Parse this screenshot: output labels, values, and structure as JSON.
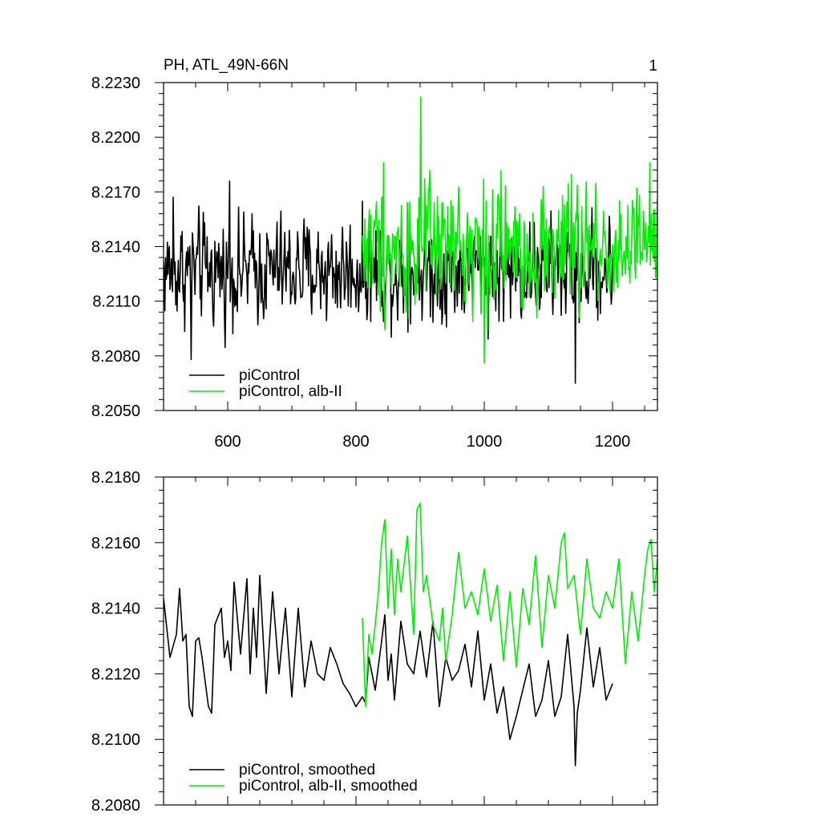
{
  "figure": {
    "title_left": "PH, ATL_49N-66N",
    "title_right": "1"
  },
  "chart_data": [
    {
      "type": "line",
      "title": "PH, ATL_49N-66N",
      "xlabel": "",
      "ylabel": "",
      "xlim": [
        500,
        1270
      ],
      "ylim": [
        8.205,
        8.223
      ],
      "x_ticks": [
        600,
        800,
        1000,
        1200
      ],
      "x_tick_labels": [
        "600",
        "800",
        "1000",
        "1200"
      ],
      "y_ticks": [
        8.205,
        8.208,
        8.211,
        8.214,
        8.217,
        8.22,
        8.223
      ],
      "y_tick_labels": [
        "8.2050",
        "8.2080",
        "8.2110",
        "8.2140",
        "8.2170",
        "8.2200",
        "8.2230"
      ],
      "legend_position": "bottom-left",
      "grid": false,
      "series": [
        {
          "name": "piControl",
          "color": "#000000",
          "x_range": [
            500,
            1200
          ],
          "x_step": 1,
          "mean": 8.2127,
          "noise": 0.00135,
          "extremes": [
            [
              515,
              8.2167
            ],
            [
              543,
              8.2078
            ],
            [
              603,
              8.2176
            ],
            [
              1142,
              8.2065
            ]
          ]
        },
        {
          "name": "piControl, alb-II",
          "color": "#00ee00",
          "x_range": [
            810,
            1270
          ],
          "x_step": 1,
          "mean": 8.2139,
          "noise": 0.00165,
          "extremes": [
            [
              901,
              8.2222
            ],
            [
              843,
              8.2186
            ],
            [
              1000,
              8.2076
            ],
            [
              1258,
              8.2186
            ]
          ]
        }
      ]
    },
    {
      "type": "line",
      "title": "",
      "xlabel": "",
      "ylabel": "",
      "xlim": [
        500,
        1270
      ],
      "ylim": [
        8.208,
        8.218
      ],
      "x_ticks": [
        600,
        800,
        1000,
        1200
      ],
      "y_ticks": [
        8.208,
        8.21,
        8.212,
        8.214,
        8.216,
        8.218
      ],
      "y_tick_labels": [
        "8.2080",
        "8.2100",
        "8.2120",
        "8.2140",
        "8.2160",
        "8.2180"
      ],
      "legend_position": "bottom-left",
      "grid": false,
      "series": [
        {
          "name": "piControl, smoothed",
          "color": "#000000",
          "x": [
            500,
            510,
            520,
            525,
            530,
            535,
            540,
            545,
            550,
            555,
            560,
            570,
            575,
            580,
            590,
            595,
            600,
            605,
            610,
            620,
            630,
            635,
            640,
            645,
            650,
            660,
            670,
            680,
            690,
            700,
            710,
            720,
            730,
            740,
            750,
            760,
            770,
            780,
            790,
            800,
            810,
            815,
            820,
            830,
            840,
            845,
            850,
            855,
            860,
            870,
            880,
            890,
            900,
            910,
            920,
            925,
            930,
            940,
            950,
            960,
            970,
            980,
            990,
            1000,
            1010,
            1020,
            1030,
            1040,
            1050,
            1060,
            1070,
            1080,
            1090,
            1100,
            1110,
            1120,
            1130,
            1140,
            1142,
            1145,
            1150,
            1160,
            1170,
            1180,
            1190,
            1200
          ],
          "y": [
            8.2143,
            8.2125,
            8.2132,
            8.2146,
            8.213,
            8.2132,
            8.211,
            8.2107,
            8.213,
            8.2131,
            8.2125,
            8.211,
            8.2108,
            8.2135,
            8.214,
            8.2125,
            8.213,
            8.2121,
            8.2148,
            8.2126,
            8.2149,
            8.212,
            8.214,
            8.2125,
            8.215,
            8.2114,
            8.2145,
            8.212,
            8.214,
            8.2113,
            8.214,
            8.2116,
            8.213,
            8.212,
            8.2118,
            8.2128,
            8.2123,
            8.2117,
            8.2114,
            8.211,
            8.2113,
            8.2111,
            8.2125,
            8.2115,
            8.213,
            8.2138,
            8.2118,
            8.2126,
            8.2112,
            8.2136,
            8.2123,
            8.212,
            8.2133,
            8.2119,
            8.2136,
            8.2123,
            8.211,
            8.2125,
            8.2118,
            8.2121,
            8.2129,
            8.2116,
            8.2133,
            8.2112,
            8.2123,
            8.2108,
            8.2116,
            8.21,
            8.2107,
            8.2115,
            8.2123,
            8.2107,
            8.2112,
            8.2124,
            8.2107,
            8.2113,
            8.2132,
            8.211,
            8.2092,
            8.2108,
            8.2115,
            8.2134,
            8.2116,
            8.2128,
            8.2112,
            8.2117
          ]
        },
        {
          "name": "piControl, alb-II, smoothed",
          "color": "#00ee00",
          "x": [
            810,
            815,
            820,
            825,
            830,
            835,
            840,
            845,
            850,
            855,
            860,
            865,
            870,
            880,
            890,
            895,
            900,
            905,
            910,
            920,
            930,
            935,
            940,
            950,
            960,
            970,
            980,
            990,
            1000,
            1010,
            1020,
            1030,
            1040,
            1050,
            1060,
            1070,
            1080,
            1090,
            1100,
            1110,
            1120,
            1125,
            1130,
            1140,
            1150,
            1160,
            1170,
            1180,
            1190,
            1200,
            1210,
            1220,
            1230,
            1240,
            1250,
            1255,
            1260,
            1265,
            1270
          ],
          "y": [
            8.2137,
            8.211,
            8.2132,
            8.2126,
            8.2135,
            8.2145,
            8.216,
            8.2167,
            8.214,
            8.2158,
            8.2138,
            8.2155,
            8.2145,
            8.2162,
            8.2132,
            8.217,
            8.2172,
            8.2145,
            8.215,
            8.2135,
            8.213,
            8.214,
            8.2124,
            8.2138,
            8.2157,
            8.214,
            8.2145,
            8.2138,
            8.2152,
            8.2136,
            8.2147,
            8.2124,
            8.2145,
            8.2122,
            8.2146,
            8.2135,
            8.2156,
            8.2128,
            8.215,
            8.214,
            8.216,
            8.2163,
            8.2146,
            8.215,
            8.2132,
            8.2155,
            8.214,
            8.2137,
            8.2145,
            8.214,
            8.2155,
            8.2123,
            8.2145,
            8.213,
            8.215,
            8.2158,
            8.2161,
            8.2145,
            8.2155
          ]
        }
      ]
    }
  ]
}
